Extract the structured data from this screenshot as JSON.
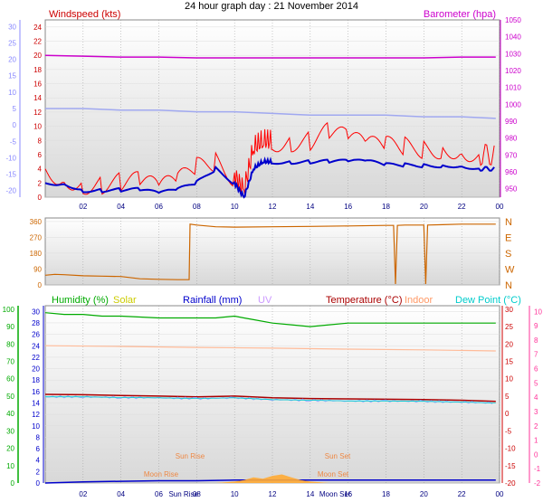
{
  "chart_data": [
    {
      "type": "line",
      "title": "24 hour graph day : 21 November 2014",
      "legend": [
        "Windspeed (kts)",
        "Barometer (hpa)"
      ],
      "x_ticks": [
        "02",
        "04",
        "06",
        "08",
        "10",
        "12",
        "14",
        "16",
        "18",
        "20",
        "22",
        "00"
      ],
      "y_left_ticks": [
        "0",
        "2",
        "4",
        "6",
        "8",
        "10",
        "12",
        "14",
        "16",
        "18",
        "20",
        "22",
        "24"
      ],
      "y_left_far_ticks": [
        "-20",
        "-15",
        "-10",
        "-5",
        "0",
        "5",
        "10",
        "15",
        "20",
        "25",
        "30"
      ],
      "y_right_ticks": [
        "950",
        "960",
        "970",
        "980",
        "990",
        "1000",
        "1010",
        "1020",
        "1030",
        "1040",
        "1050"
      ],
      "colors": {
        "wind": "#ff0000",
        "gust_avg": "#0000cc",
        "barometer": "#cc00cc",
        "temp_trace": "#a0a8f0",
        "axis_left": "#cc0000",
        "axis_far": "#8888ff",
        "axis_right": "#cc00cc"
      },
      "series": [
        {
          "name": "Windspeed (kts)",
          "x_hours": [
            0,
            1,
            2,
            3,
            4,
            5,
            6,
            7,
            8,
            9,
            10,
            10.5,
            11,
            11.5,
            12,
            13,
            14,
            15,
            16,
            17,
            18,
            19,
            20,
            21,
            22,
            23,
            23.8
          ],
          "values": [
            4,
            3,
            2,
            2,
            2,
            2,
            1,
            2,
            4,
            5,
            3,
            1,
            7,
            8,
            8,
            8,
            8,
            9,
            8,
            7,
            7,
            7,
            7,
            7,
            7,
            6,
            6
          ]
        },
        {
          "name": "Average",
          "x_hours": [
            0,
            1,
            2,
            3,
            4,
            5,
            6,
            7,
            8,
            9,
            10,
            10.5,
            11,
            11.5,
            12,
            13,
            14,
            15,
            16,
            17,
            18,
            19,
            20,
            21,
            22,
            23,
            23.8
          ],
          "values": [
            2,
            2,
            1,
            1,
            1,
            1,
            0.5,
            1,
            2,
            4,
            2,
            0,
            4,
            5,
            5,
            5,
            5,
            5,
            5,
            5,
            4.5,
            4.5,
            4.5,
            4.5,
            4.5,
            4,
            4
          ]
        },
        {
          "name": "Barometer (hpa)",
          "x_hours": [
            0,
            2,
            4,
            6,
            8,
            10,
            12,
            14,
            16,
            18,
            20,
            22,
            23.8
          ],
          "values": [
            1029,
            1028.5,
            1028,
            1028,
            1027.5,
            1027.5,
            1027.5,
            1027.5,
            1027.5,
            1027.5,
            1027.5,
            1028,
            1028
          ]
        },
        {
          "name": "Temperature trace",
          "x_hours": [
            0,
            2,
            4,
            6,
            8,
            10,
            12,
            14,
            16,
            18,
            20,
            22,
            23.8
          ],
          "values": [
            5,
            5,
            4.5,
            4.5,
            4,
            4,
            3.5,
            3,
            3,
            3,
            2.5,
            2.5,
            2
          ]
        }
      ],
      "ylim_left": [
        0,
        25
      ],
      "ylim_right": [
        945,
        1050
      ],
      "ylim_far": [
        -22,
        32
      ]
    },
    {
      "type": "line",
      "y_ticks": [
        "0",
        "90",
        "180",
        "270",
        "360"
      ],
      "y_right_labels": [
        "N",
        "W",
        "S",
        "E",
        "N"
      ],
      "x_ticks": [
        "02",
        "04",
        "06",
        "08",
        "10",
        "12",
        "14",
        "16",
        "18",
        "20",
        "22",
        "00"
      ],
      "colors": {
        "direction": "#cc6600"
      },
      "series": [
        {
          "name": "Wind direction",
          "x_hours": [
            0,
            0.5,
            1,
            2,
            3,
            4,
            5,
            6,
            7,
            7.6,
            7.65,
            8,
            9,
            10,
            12,
            14,
            16,
            18,
            18.4,
            18.5,
            18.6,
            19,
            20,
            20.1,
            20.2,
            21,
            22,
            23.8
          ],
          "values": [
            55,
            60,
            58,
            52,
            50,
            48,
            35,
            32,
            30,
            30,
            345,
            340,
            330,
            328,
            330,
            332,
            335,
            338,
            338,
            5,
            338,
            340,
            340,
            5,
            340,
            342,
            345,
            345
          ]
        }
      ],
      "ylim": [
        0,
        380
      ]
    },
    {
      "type": "line",
      "legend": [
        "Humidity (%)",
        "Solar",
        "Rainfall (mm)",
        "UV",
        "Temperature (°C)",
        "Indoor",
        "Dew Point (°C)"
      ],
      "x_ticks": [
        "02",
        "04",
        "06",
        "08",
        "10",
        "12",
        "14",
        "16",
        "18",
        "20",
        "22",
        "00"
      ],
      "x_annotations": [
        "Sun Rise",
        "Sun Set",
        "Moon Rise",
        "Moon Set"
      ],
      "x_extra_labels": [
        "Sun Rise",
        "Moon Set"
      ],
      "y_humidity_ticks": [
        "0",
        "10",
        "20",
        "30",
        "40",
        "50",
        "60",
        "70",
        "80",
        "90",
        "100"
      ],
      "y_rain_ticks": [
        "0",
        "2",
        "4",
        "6",
        "8",
        "10",
        "12",
        "14",
        "16",
        "18",
        "20",
        "22",
        "24",
        "26",
        "28",
        "30"
      ],
      "y_temp_ticks": [
        "-20",
        "-15",
        "-10",
        "-5",
        "0",
        "5",
        "10",
        "15",
        "20",
        "25",
        "30"
      ],
      "y_right_ticks": [
        "-20",
        "-15",
        "-10",
        "-5",
        "0",
        "5",
        "10",
        "15",
        "20",
        "25",
        "30"
      ],
      "y_far_right_ticks": [
        "-2",
        "-1",
        "0",
        "1",
        "2",
        "3",
        "4",
        "5",
        "6",
        "7",
        "8",
        "9",
        "10"
      ],
      "colors": {
        "humidity": "#00aa00",
        "solar": "#cccc00",
        "rain": "#0000cc",
        "uv": "#cc99ff",
        "temperature": "#aa0000",
        "indoor": "#ff9966",
        "dewpoint": "#00cccc",
        "axis_far_right": "#ff3399"
      },
      "series": [
        {
          "name": "Humidity (%)",
          "x_hours": [
            0,
            1,
            2,
            3,
            4,
            6,
            8,
            9,
            10,
            10.5,
            11,
            12,
            13,
            14,
            15,
            16,
            18,
            20,
            22,
            23.8
          ],
          "values": [
            98,
            97,
            97,
            96,
            96,
            95,
            95,
            95,
            96,
            95,
            94,
            92,
            91,
            90,
            91,
            92,
            92,
            92,
            92,
            92
          ]
        },
        {
          "name": "Indoor",
          "x_hours": [
            0,
            4,
            8,
            12,
            16,
            20,
            23.8
          ],
          "values": [
            19.5,
            19.3,
            19,
            18.8,
            18.5,
            18.3,
            18
          ]
        },
        {
          "name": "Temperature (°C)",
          "x_hours": [
            0,
            2,
            4,
            6,
            8,
            10,
            12,
            14,
            16,
            18,
            20,
            22,
            23.8
          ],
          "values": [
            5.5,
            5.4,
            5.2,
            5,
            4.8,
            5,
            4.5,
            4.3,
            4.2,
            4.1,
            4,
            3.8,
            3.5
          ]
        },
        {
          "name": "Dew Point (°C)",
          "x_hours": [
            0,
            2,
            4,
            6,
            8,
            10,
            12,
            14,
            16,
            18,
            20,
            22,
            23.8
          ],
          "values": [
            4.8,
            4.8,
            4.6,
            4.5,
            4.3,
            4.5,
            4,
            3.8,
            3.6,
            3.6,
            3.5,
            3.3,
            3
          ]
        },
        {
          "name": "Rainfall (mm)",
          "x_hours": [
            0,
            2,
            4,
            6,
            8,
            10,
            12,
            14,
            16,
            18,
            20,
            22,
            23.8
          ],
          "values": [
            0,
            0.2,
            0.3,
            0.4,
            0.4,
            0.5,
            0.5,
            0.5,
            0.5,
            0.5,
            0.5,
            0.5,
            0.5
          ]
        },
        {
          "name": "Solar",
          "x_hours": [
            9,
            10,
            10.5,
            11,
            11.5,
            12,
            12.5,
            13,
            13.5,
            14,
            15
          ],
          "values": [
            0,
            1,
            2,
            4,
            3,
            5,
            6,
            4,
            2,
            1,
            0
          ]
        }
      ],
      "ylim_humidity": [
        0,
        102
      ],
      "ylim_temp": [
        -20,
        30
      ]
    }
  ]
}
